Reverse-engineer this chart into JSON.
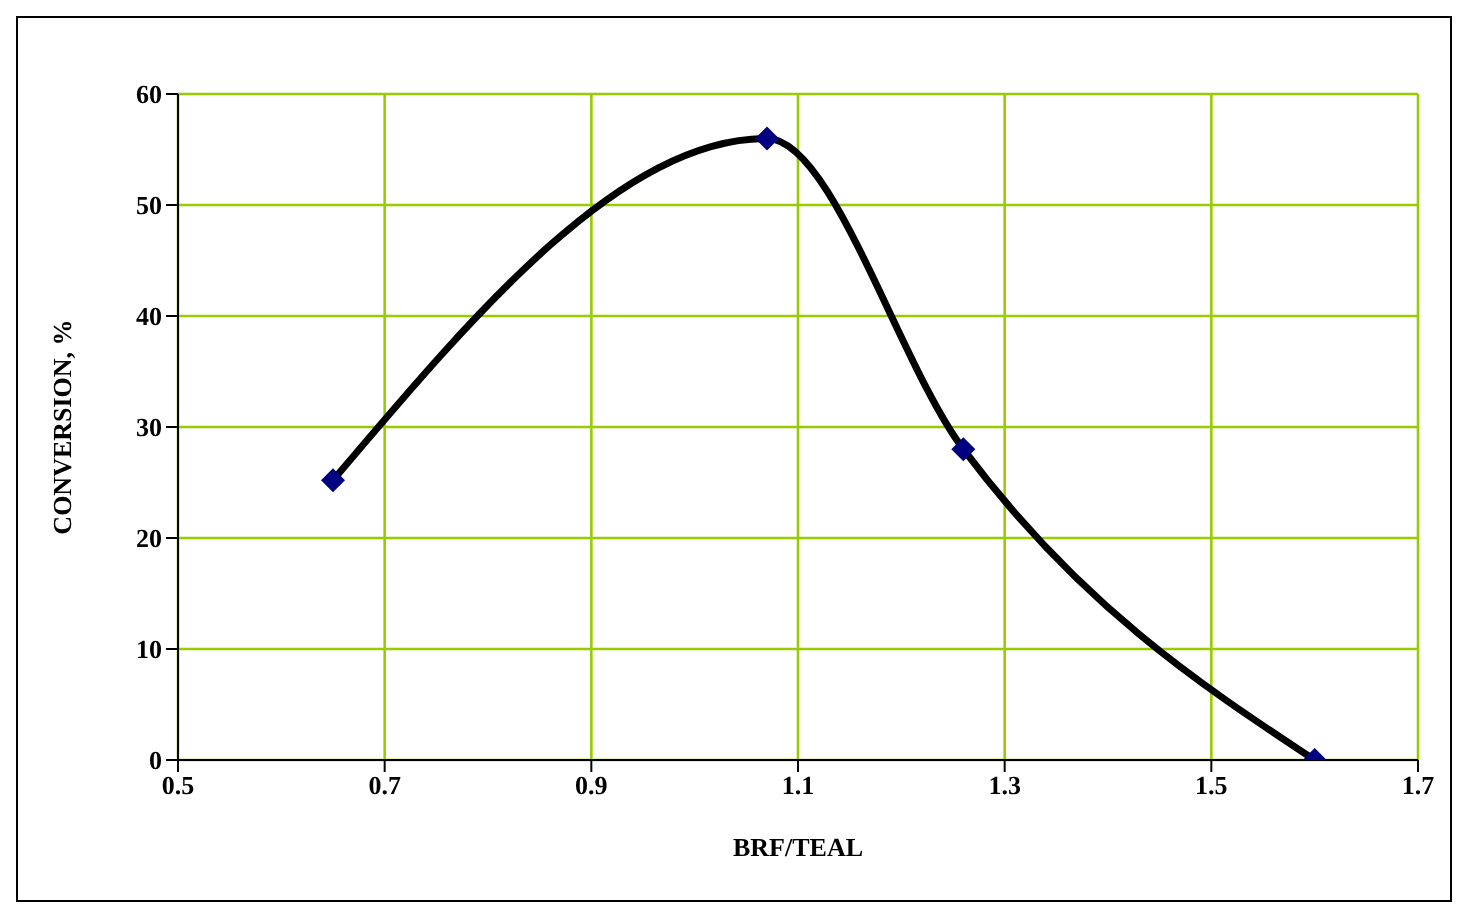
{
  "chart_data": {
    "type": "line",
    "xlabel": "BRF/TEAL",
    "ylabel": "CONVERSION, %",
    "x": [
      0.65,
      1.07,
      1.26,
      1.6
    ],
    "series": [
      {
        "color": "#000000",
        "values": [
          25.2,
          56,
          28,
          0
        ],
        "marker": "none"
      },
      {
        "type": "scatter",
        "color": "#000080",
        "values": [
          25.2,
          56,
          28,
          0
        ],
        "marker": "diamond"
      }
    ],
    "xlim": [
      0.5,
      1.7
    ],
    "xticks": [
      0.5,
      0.7,
      0.9,
      1.1,
      1.3,
      1.5,
      1.7
    ],
    "ylim": [
      0,
      60
    ],
    "yticks": [
      0,
      10,
      20,
      30,
      40,
      50,
      60
    ],
    "grid": true
  }
}
